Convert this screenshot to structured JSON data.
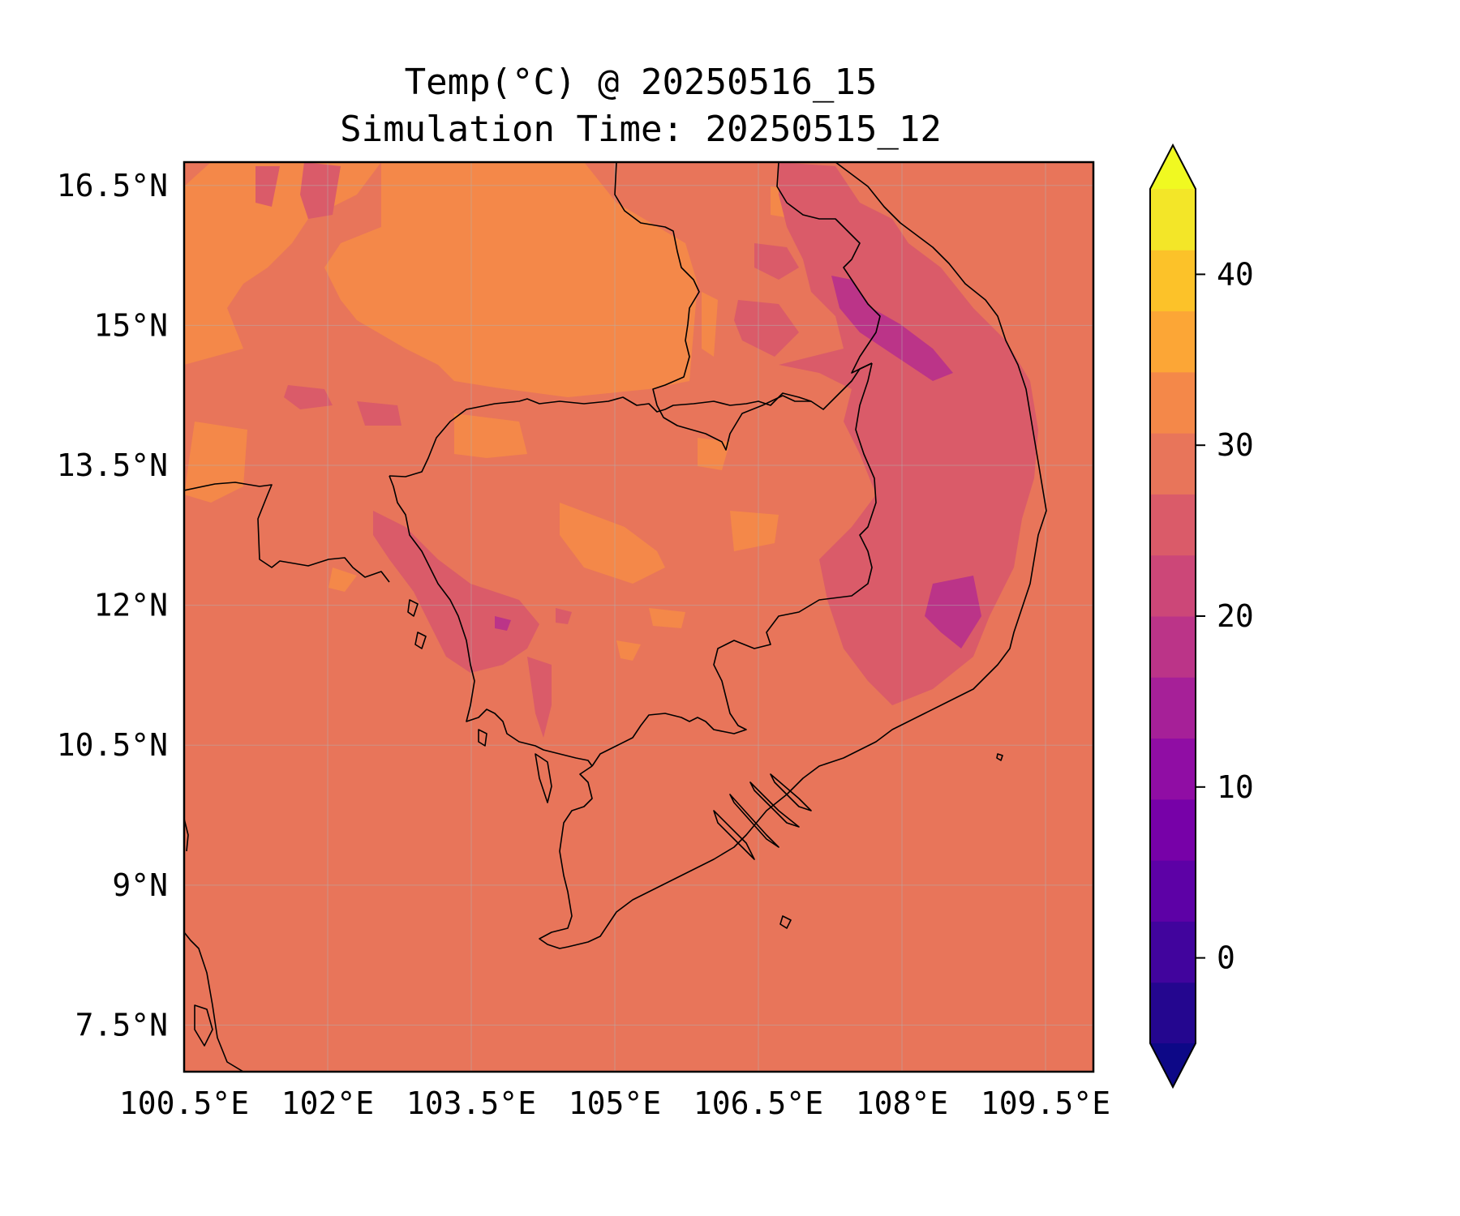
{
  "title": "Temp(°C) @ 20250516_15",
  "subtitle": "Simulation Time: 20250515_12",
  "map": {
    "lon_range": [
      100.5,
      110.0
    ],
    "lat_range": [
      7.0,
      16.75
    ],
    "xticks": [
      "100.5°E",
      "102°E",
      "103.5°E",
      "105°E",
      "106.5°E",
      "108°E",
      "109.5°E"
    ],
    "yticks": [
      "16.5°N",
      "15°N",
      "13.5°N",
      "12°N",
      "10.5°N",
      "9°N",
      "7.5°N"
    ],
    "gridlines": true,
    "background_color": "#e8755a"
  },
  "colorbar": {
    "ticks": [
      "40",
      "30",
      "20",
      "10",
      "0"
    ],
    "extend": "both",
    "colors": [
      "#0d0887",
      "#24068f",
      "#41049d",
      "#5d01a6",
      "#7701a8",
      "#900da4",
      "#a62098",
      "#bb3488",
      "#cc4778",
      "#da5b69",
      "#e8755a",
      "#f48849",
      "#fca636",
      "#fcc229",
      "#f3e628",
      "#f0f921"
    ]
  }
}
